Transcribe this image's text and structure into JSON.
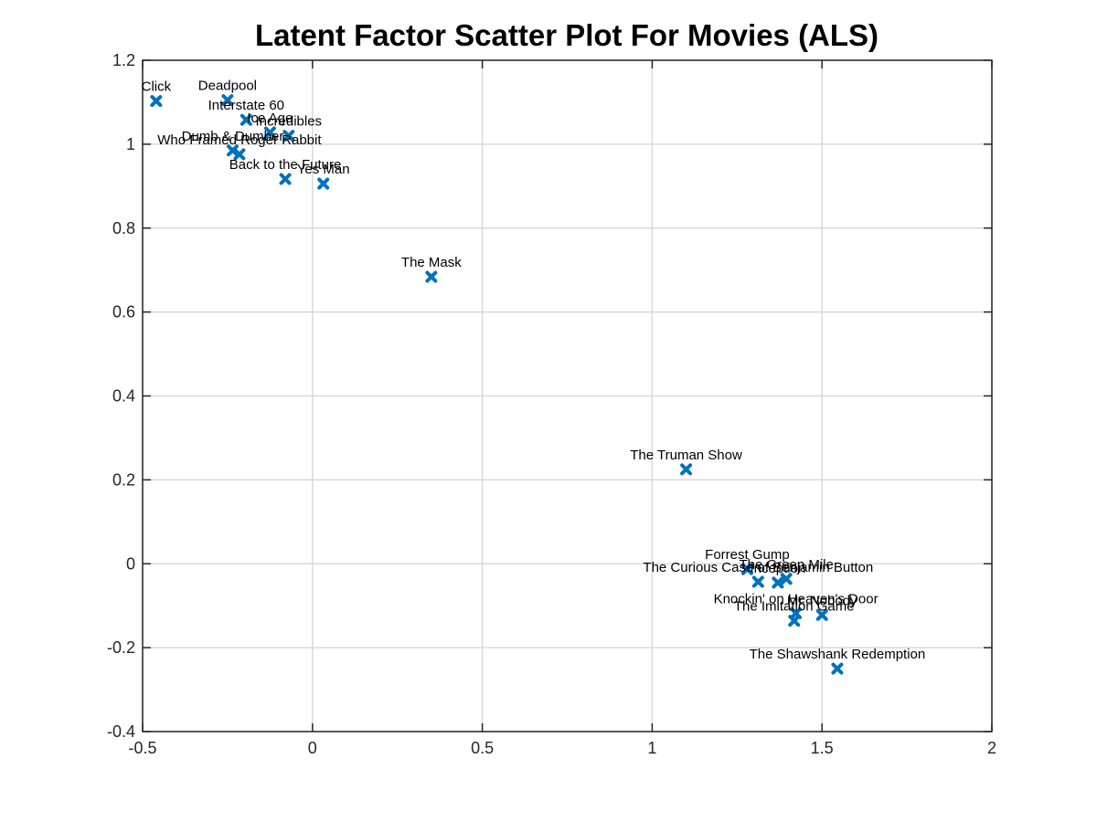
{
  "chart_data": {
    "type": "scatter",
    "title": "Latent Factor Scatter Plot For Movies (ALS)",
    "xlabel": "",
    "ylabel": "",
    "xlim": [
      -0.5,
      2
    ],
    "ylim": [
      -0.4,
      1.2
    ],
    "xticks": [
      "-0.5",
      "0",
      "0.5",
      "1",
      "1.5",
      "2"
    ],
    "yticks": [
      "-0.4",
      "-0.2",
      "0",
      "0.2",
      "0.4",
      "0.6",
      "0.8",
      "1",
      "1.2"
    ],
    "grid": true,
    "marker": "x",
    "marker_color": "#0072bd",
    "points": [
      {
        "label": "Click",
        "x": -0.46,
        "y": 1.103
      },
      {
        "label": "Deadpool",
        "x": -0.25,
        "y": 1.105
      },
      {
        "label": "Interstate 60",
        "x": -0.195,
        "y": 1.058
      },
      {
        "label": "Ice Age",
        "x": -0.125,
        "y": 1.028
      },
      {
        "label": "Incredibles",
        "x": -0.07,
        "y": 1.02
      },
      {
        "label": "Dumb & Dumber",
        "x": -0.235,
        "y": 0.985
      },
      {
        "label": "Who Framed Roger Rabbit",
        "x": -0.215,
        "y": 0.976
      },
      {
        "label": "Back to the Future",
        "x": -0.08,
        "y": 0.917
      },
      {
        "label": "Yes Man",
        "x": 0.032,
        "y": 0.906
      },
      {
        "label": "The Mask",
        "x": 0.35,
        "y": 0.684
      },
      {
        "label": "The Truman Show",
        "x": 1.1,
        "y": 0.225
      },
      {
        "label": "Forrest Gump",
        "x": 1.28,
        "y": -0.013
      },
      {
        "label": "The Curious Case of Benjamin Button",
        "x": 1.312,
        "y": -0.043
      },
      {
        "label": "Inception",
        "x": 1.37,
        "y": -0.045
      },
      {
        "label": "The Green Mile",
        "x": 1.395,
        "y": -0.036
      },
      {
        "label": "Knockin' on Heaven's Door",
        "x": 1.423,
        "y": -0.118
      },
      {
        "label": "Mr. Nobody",
        "x": 1.5,
        "y": -0.122
      },
      {
        "label": "The Imitation Game",
        "x": 1.418,
        "y": -0.136
      },
      {
        "label": "The Shawshank Redemption",
        "x": 1.545,
        "y": -0.25
      }
    ]
  }
}
